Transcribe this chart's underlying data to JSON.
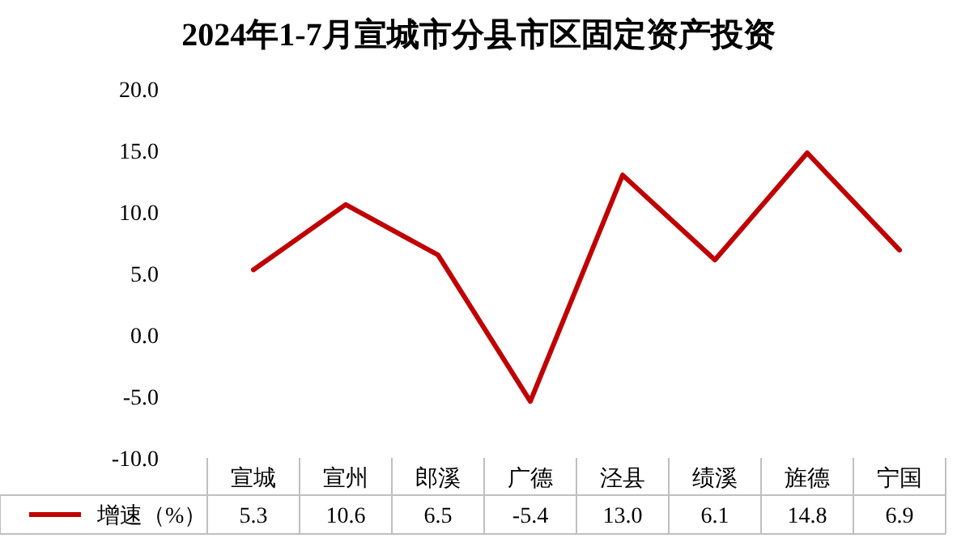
{
  "chart_data": {
    "type": "line",
    "title": "2024年1-7月宣城市分县市区固定资产投资",
    "categories": [
      "宣城",
      "宣州",
      "郎溪",
      "广德",
      "泾县",
      "绩溪",
      "旌德",
      "宁国"
    ],
    "series": [
      {
        "name": "增速（%）",
        "color": "#c00000",
        "values": [
          5.3,
          10.6,
          6.5,
          -5.4,
          13.0,
          6.1,
          14.8,
          6.9
        ],
        "value_labels": [
          "5.3",
          "10.6",
          "6.5",
          "-5.4",
          "13.0",
          "6.1",
          "14.8",
          "6.9"
        ]
      }
    ],
    "ylim": [
      -10,
      20
    ],
    "yticks": [
      {
        "value": 20,
        "label": "20.0"
      },
      {
        "value": 15,
        "label": "15.0"
      },
      {
        "value": 10,
        "label": "10.0"
      },
      {
        "value": 5,
        "label": "5.0"
      },
      {
        "value": 0,
        "label": "0.0"
      },
      {
        "value": -5,
        "label": "-5.0"
      },
      {
        "value": -10,
        "label": "-10.0"
      }
    ],
    "legend": "bottom",
    "marker": "none",
    "line_style": "solid",
    "grid": false
  }
}
